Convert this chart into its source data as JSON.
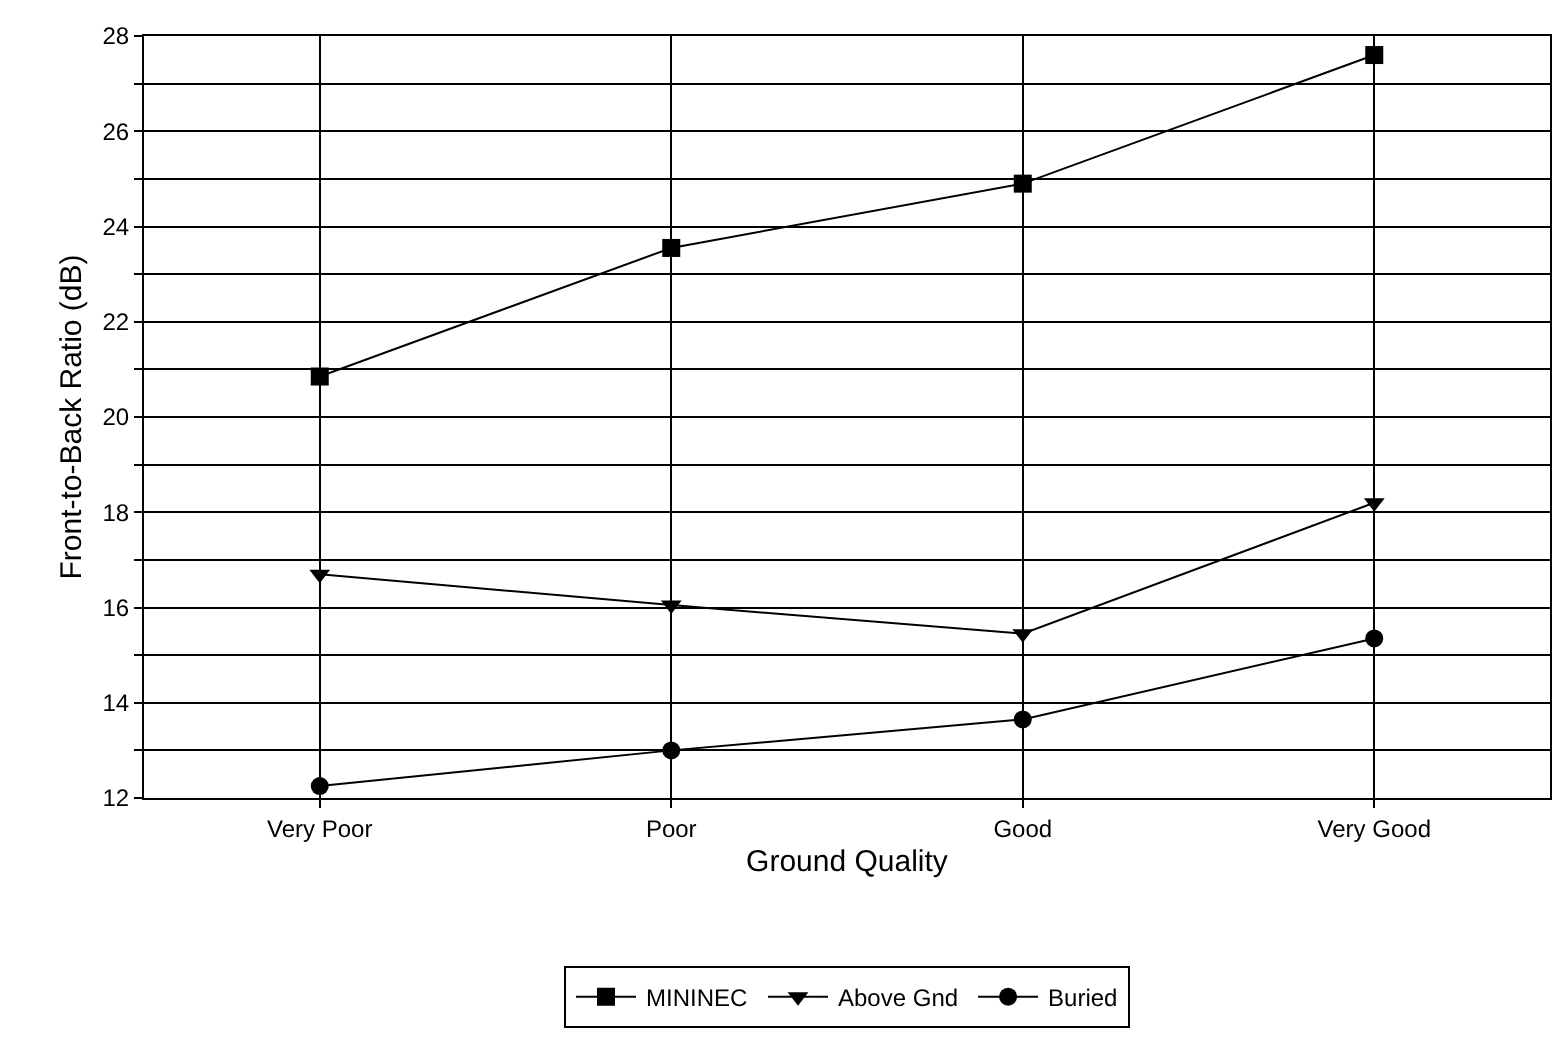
{
  "chart_data": {
    "type": "line",
    "xlabel": "Ground Quality",
    "ylabel": "Front-to-Back Ratio (dB)",
    "categories": [
      "Very Poor",
      "Poor",
      "Good",
      "Very Good"
    ],
    "series": [
      {
        "name": "MININEC",
        "color": "#000000",
        "marker": "square",
        "values": [
          20.85,
          23.55,
          24.9,
          27.6
        ]
      },
      {
        "name": "Above Gnd",
        "color": "#000000",
        "marker": "triangle-down",
        "values": [
          16.7,
          16.05,
          15.45,
          18.2
        ]
      },
      {
        "name": "Buried",
        "color": "#000000",
        "marker": "circle",
        "values": [
          12.25,
          13.0,
          13.65,
          15.35
        ]
      }
    ],
    "ylim": [
      12,
      28
    ],
    "yticks": [
      12,
      {
        "value": 13,
        "label": null
      },
      14,
      {
        "value": 15,
        "label": null
      },
      16,
      {
        "value": 17,
        "label": null
      },
      18,
      {
        "value": 19,
        "label": null
      },
      20,
      {
        "value": 21,
        "label": null
      },
      22,
      {
        "value": 23,
        "label": null
      },
      24,
      {
        "value": 25,
        "label": null
      },
      26,
      {
        "value": 27,
        "label": null
      },
      28
    ],
    "grid": true,
    "legend": "bottom",
    "line_style": "solid"
  }
}
